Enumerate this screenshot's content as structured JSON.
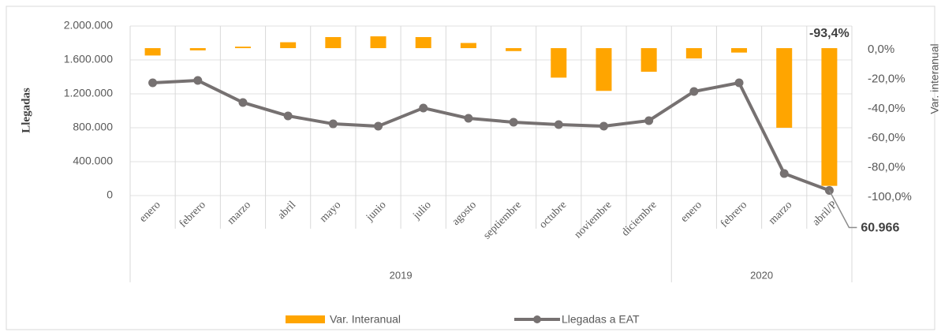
{
  "chart_data": {
    "type": "bar_line",
    "categories": [
      "enero",
      "febrero",
      "marzo",
      "abril",
      "mayo",
      "junio",
      "julio",
      "agosto",
      "septiembre",
      "octubre",
      "noviembre",
      "diciembre",
      "enero",
      "febrero",
      "marzo",
      "abril/P"
    ],
    "year_groups": [
      {
        "label": "2019",
        "count": 12
      },
      {
        "label": "2020",
        "count": 4
      }
    ],
    "series": [
      {
        "name": "Var. Interanual",
        "type": "bar",
        "axis": "y2",
        "color": "#ffa500",
        "values": [
          -5,
          -1.5,
          1,
          4,
          7.5,
          8,
          7.5,
          3.5,
          -2,
          -20,
          -29,
          -16,
          -7,
          -3,
          -54,
          -93.4
        ],
        "value_labels": [
          null,
          null,
          null,
          null,
          null,
          null,
          null,
          null,
          null,
          null,
          null,
          null,
          null,
          null,
          null,
          "-93,4%"
        ]
      },
      {
        "name": "Llegadas a EAT",
        "type": "line",
        "color": "#767171",
        "values": [
          1330000,
          1358000,
          1098000,
          940000,
          846000,
          819000,
          1033000,
          912000,
          865000,
          837000,
          819000,
          884000,
          1228000,
          1330000,
          260000,
          60966
        ],
        "value_labels": [
          null,
          null,
          null,
          null,
          null,
          null,
          null,
          null,
          null,
          null,
          null,
          null,
          null,
          null,
          null,
          "60.966"
        ]
      }
    ],
    "ylabel": "Llegadas",
    "y2label": "Var. interanual",
    "ylim": [
      0,
      2000000
    ],
    "yticks": [
      0,
      {
        "value": 400000,
        "label": "400.000"
      },
      {
        "value": 800000,
        "label": "800.000"
      },
      {
        "value": 1200000,
        "label": "1.200.000"
      },
      {
        "value": 1600000,
        "label": "1.600.000"
      },
      {
        "value": 2000000,
        "label": "2.000.000"
      }
    ],
    "y2lim": [
      -100,
      15
    ],
    "y2ticks": [
      {
        "value": 0,
        "label": "0,0%"
      },
      {
        "value": -20,
        "label": "-20,0%"
      },
      {
        "value": -40,
        "label": "-40,0%"
      },
      {
        "value": -60,
        "label": "-60,0%"
      },
      {
        "value": -80,
        "label": "-80,0%"
      },
      {
        "value": -100,
        "label": "-100,0%"
      }
    ],
    "grid": true,
    "legend": "bottom"
  }
}
